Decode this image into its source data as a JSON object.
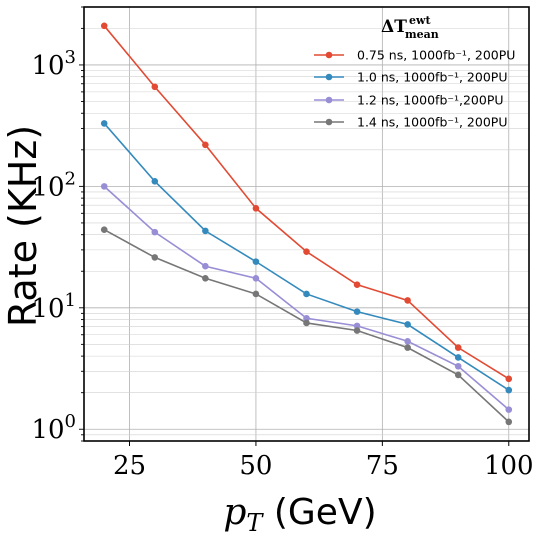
{
  "chart_data": {
    "type": "line",
    "title": "",
    "xlabel": "p_T (GeV)",
    "xlabel_parts": {
      "var_main": "p",
      "var_sub": "T",
      "rest": "(GeV)"
    },
    "ylabel": "Rate (KHz)",
    "yscale": "log",
    "xlim": [
      16,
      104
    ],
    "ylim": [
      0.8,
      3000
    ],
    "x_ticks": [
      25,
      50,
      75,
      100
    ],
    "y_ticks": [
      {
        "value": 1,
        "base": "10",
        "exp": "0"
      },
      {
        "value": 10,
        "base": "10",
        "exp": "1"
      },
      {
        "value": 100,
        "base": "10",
        "exp": "2"
      },
      {
        "value": 1000,
        "base": "10",
        "exp": "3"
      }
    ],
    "grid": true,
    "legend": {
      "placement": "top-right",
      "title_main": "ΔT",
      "title_sup": "ewt",
      "title_sub": "mean"
    },
    "x": [
      20,
      30,
      40,
      50,
      60,
      70,
      80,
      90,
      100
    ],
    "series": [
      {
        "name": "0.75 ns, 1000fb⁻¹, 200PU",
        "color": "#e24a33",
        "values": [
          2100,
          660,
          220,
          66,
          29,
          15.5,
          11.5,
          4.7,
          2.6
        ]
      },
      {
        "name": "1.0 ns, 1000fb⁻¹, 200PU",
        "color": "#348abd",
        "values": [
          330,
          110,
          43,
          24,
          13,
          9.3,
          7.3,
          3.9,
          2.1
        ]
      },
      {
        "name": "1.2 ns, 1000fb⁻¹,200PU",
        "color": "#988ed5",
        "values": [
          100,
          42,
          22,
          17.5,
          8.2,
          7.1,
          5.3,
          3.3,
          1.45
        ]
      },
      {
        "name": "1.4 ns, 1000fb⁻¹, 200PU",
        "color": "#777777",
        "values": [
          44,
          26,
          17.5,
          13,
          7.5,
          6.5,
          4.7,
          2.8,
          1.15
        ]
      }
    ]
  }
}
